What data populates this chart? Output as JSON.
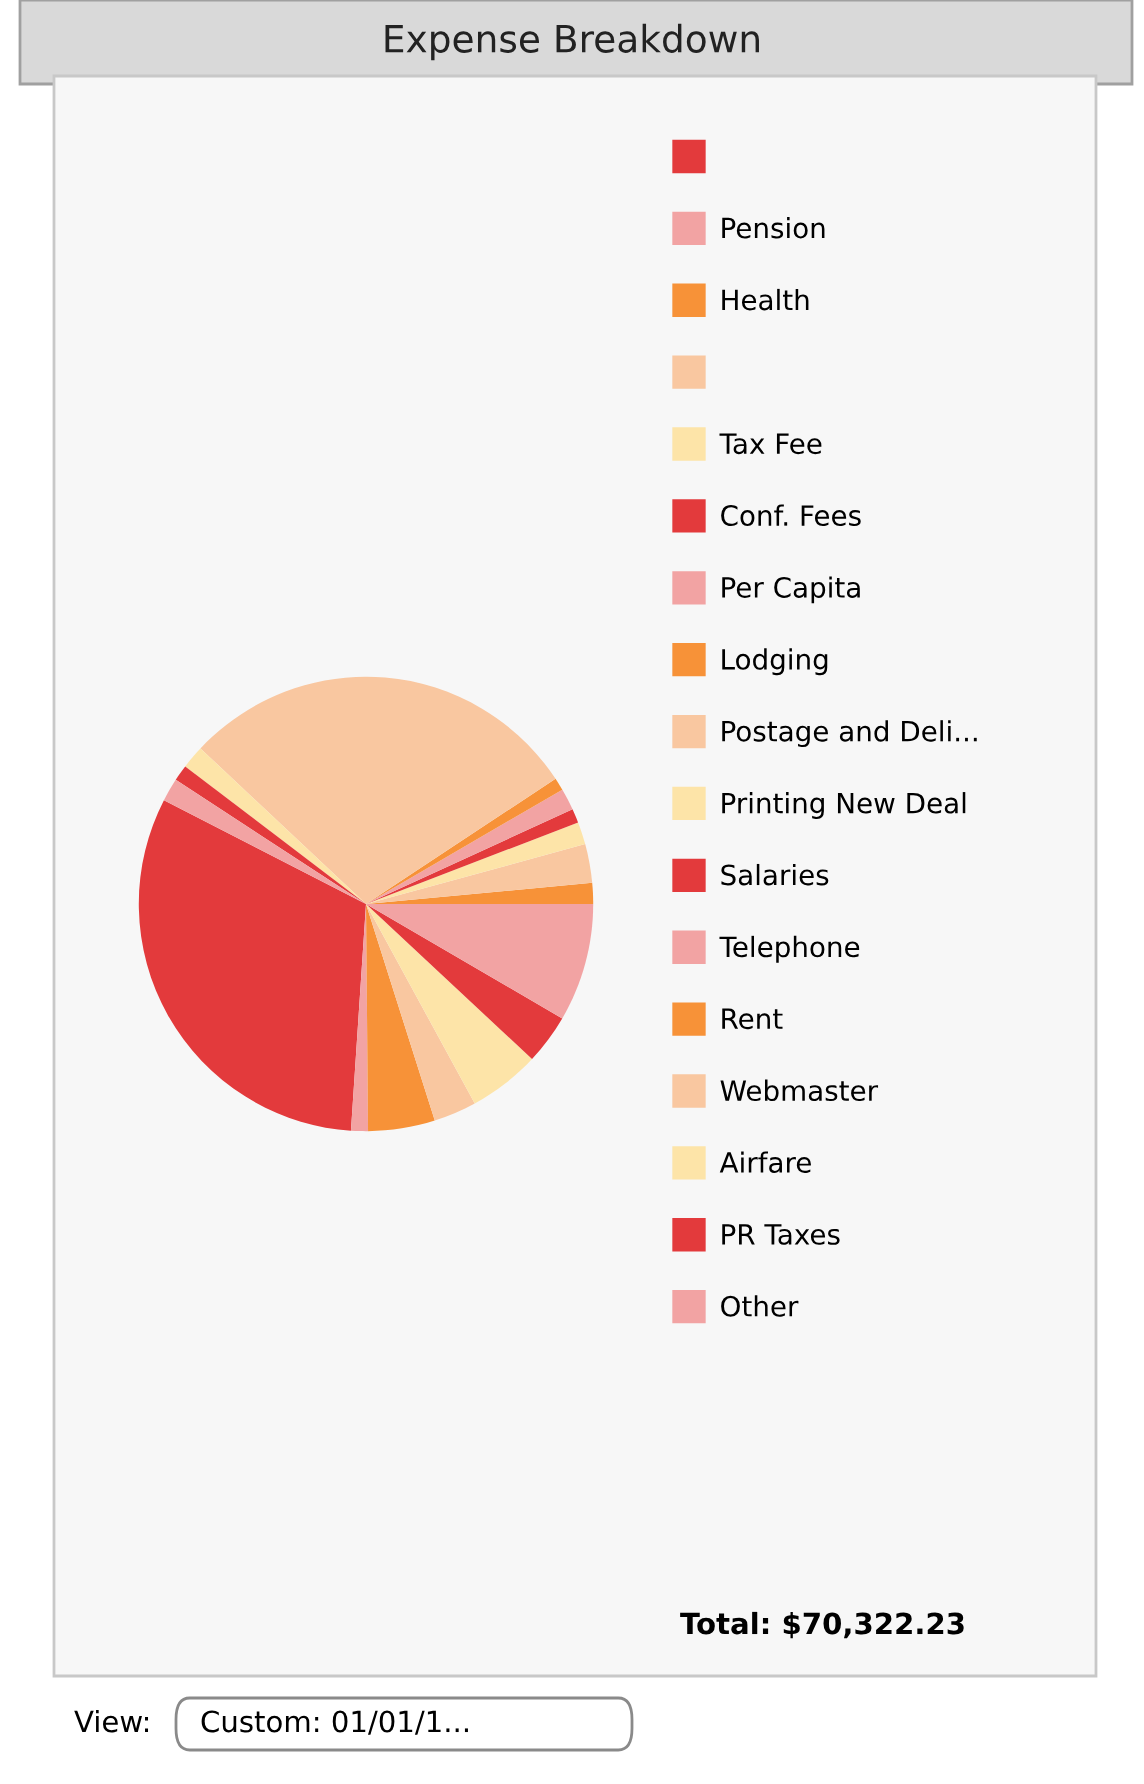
{
  "chart_data": {
    "type": "pie",
    "title": "Expense Breakdown",
    "categories": [
      null,
      "Pension",
      "Health",
      null,
      "Tax Fee",
      "Conf. Fees",
      "Per Capita",
      "Lodging",
      "Postage and Deli...",
      "Printing New Deal",
      "Salaries",
      "Telephone",
      "Rent",
      "Webmaster",
      "Airfare",
      "PR Taxes",
      "Other"
    ],
    "values": [
      31.5,
      1.2,
      4.75,
      3.05,
      5.1,
      3.55,
      8.4,
      1.5,
      2.75,
      1.6,
      1.0,
      1.55,
      0.9,
      28.7,
      1.65,
      1.15,
      1.65
    ],
    "colors": [
      "#e33a3c",
      "#f2a3a3",
      "#f79238",
      "#f9c7a0",
      "#fde4a8",
      "#e33a3c",
      "#f2a3a3",
      "#f79238",
      "#f9c7a0",
      "#fde4a8",
      "#e33a3c",
      "#f2a3a3",
      "#f79238",
      "#f9c7a0",
      "#fde4a8",
      "#e33a3c",
      "#f2a3a3"
    ],
    "legend": "right",
    "annotations": [
      "Total: $70,322.23",
      "View:",
      "Custom: 01/01/1..."
    ]
  }
}
